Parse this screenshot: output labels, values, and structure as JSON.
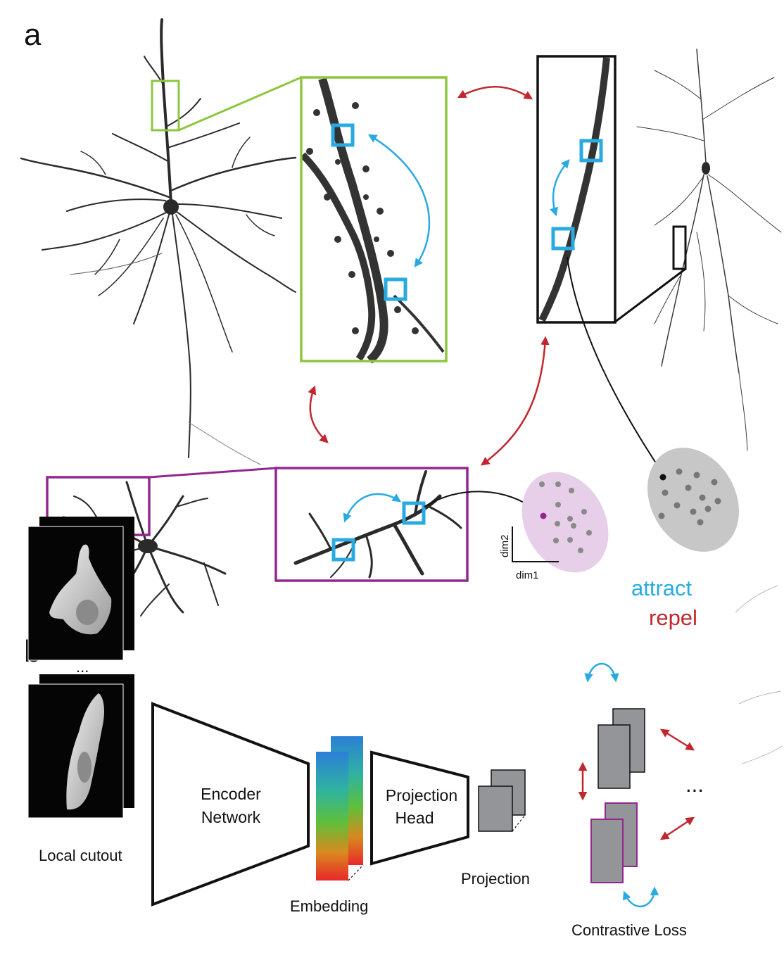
{
  "panel_a": {
    "letter": "a",
    "axis": {
      "x_label": "dim1",
      "y_label": "dim2"
    },
    "legend": {
      "attract": "attract",
      "repel": "repel"
    }
  },
  "panel_b": {
    "letter": "b",
    "input_label": "Local cutout",
    "ellipsis_small": "...",
    "encoder_label_line1": "Encoder",
    "encoder_label_line2": "Network",
    "embedding_label": "Embedding",
    "projection_head_line1": "Projection",
    "projection_head_line2": "Head",
    "projection_label": "Projection",
    "loss_label": "Contrastive Loss",
    "ellipsis_loss": "..."
  },
  "colors": {
    "attract": "#29abe2",
    "repel": "#c1272d",
    "green_box": "#8dc63f",
    "purple_box": "#92278f",
    "black_box": "#111111",
    "cluster_purple": "#e8cfe9",
    "cluster_gray": "#c7c7c7",
    "card_gray": "#939598"
  }
}
